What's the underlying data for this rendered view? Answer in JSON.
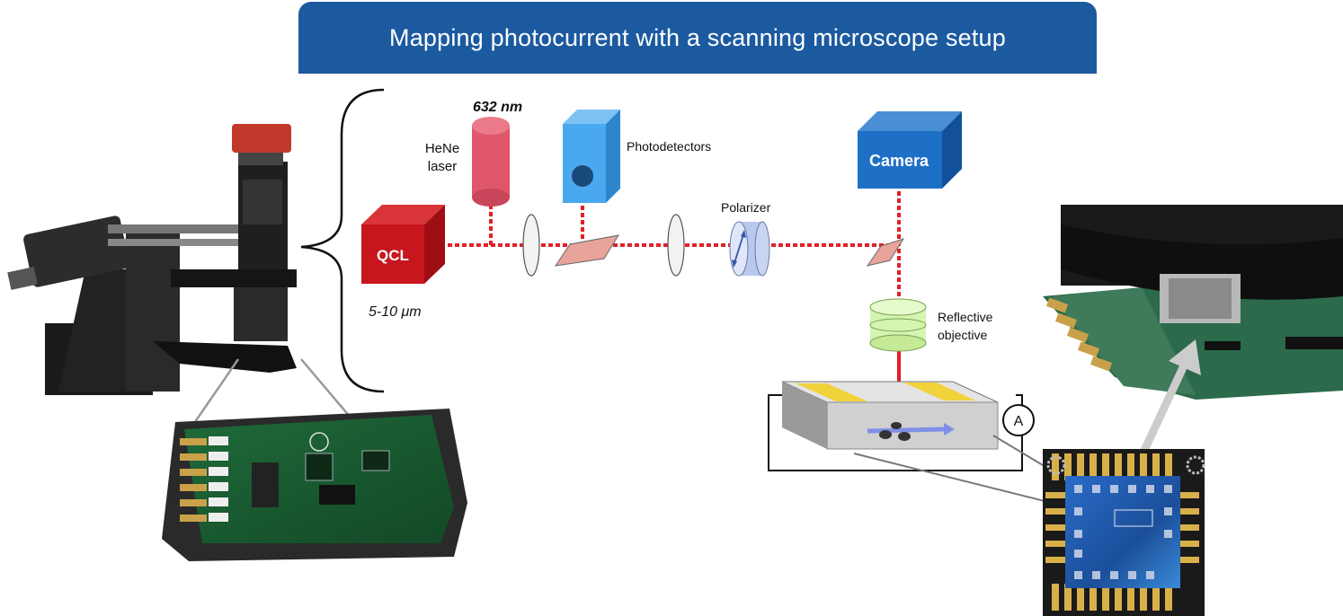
{
  "title": "Mapping photocurrent with a scanning microscope setup",
  "labels": {
    "wavelength_hene": "632 nm",
    "hene_line1": "HeNe",
    "hene_line2": "laser",
    "photodetectors": "Photodetectors",
    "camera": "Camera",
    "qcl": "QCL",
    "qcl_range": "5-10 μm",
    "polarizer": "Polarizer",
    "objective_line1": "Reflective",
    "objective_line2": "objective",
    "ammeter": "A"
  },
  "colors": {
    "banner": "#1c5aa0",
    "beam": "#e0202a",
    "qcl": "#c8161e",
    "hene": "#e0566a",
    "photodetector": "#4aa8ee",
    "camera": "#1e6fc6",
    "objective": "#d4f5b0",
    "polarizer": "#b8c8ee",
    "electrode": "#f0d23a"
  },
  "icons": [
    "microscope-photo",
    "pcb-board-photo",
    "objective-over-board-photo",
    "chip-closeup-photo"
  ]
}
